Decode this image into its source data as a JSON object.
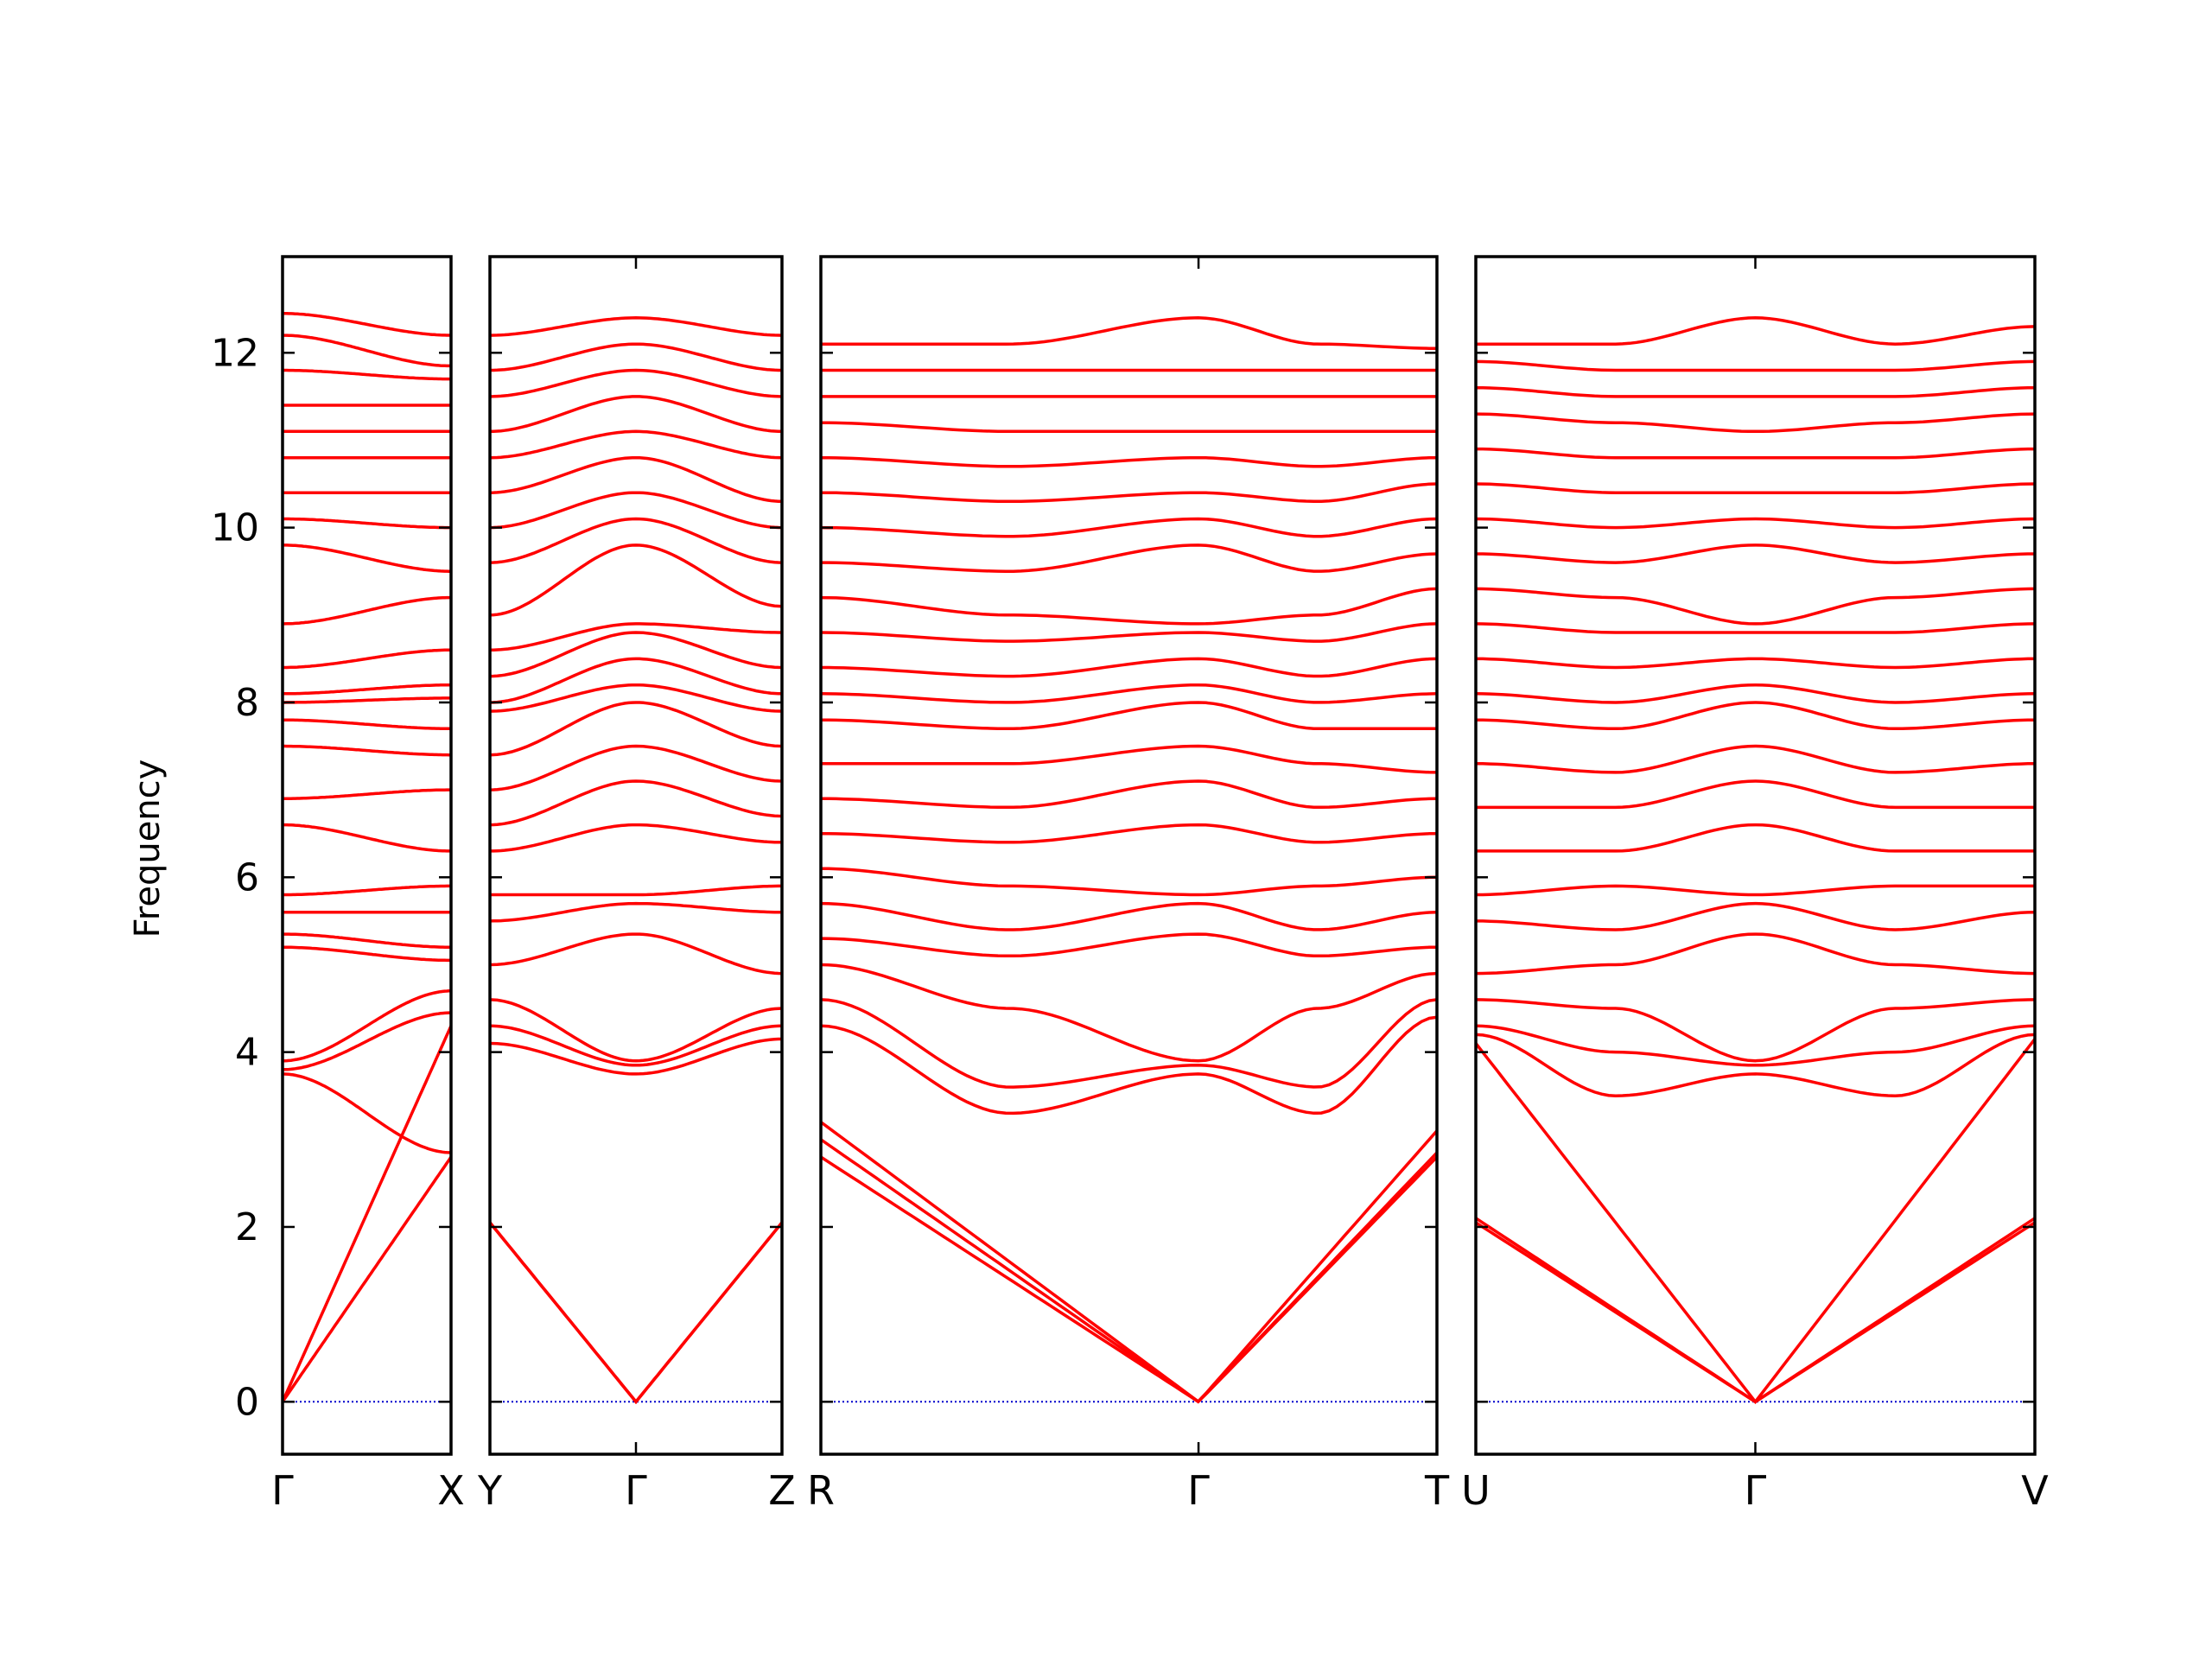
{
  "chart_data": {
    "type": "line",
    "title": "",
    "ylabel": "Frequency",
    "xlabel": "",
    "ylim": [
      -0.6,
      13.1
    ],
    "yticks": [
      0,
      2,
      4,
      6,
      8,
      10,
      12
    ],
    "grid": false,
    "legend": "none",
    "colors": {
      "bands": "#ff0000",
      "zero_line": "#0000cc",
      "axes": "#000000"
    },
    "segments": [
      {
        "name": "",
        "ticks": [
          {
            "label": "Γ",
            "pos": 0
          },
          {
            "label": "X",
            "pos": 1
          }
        ],
        "end_labels": [
          "Γ",
          "X"
        ],
        "bands_start": [
          0,
          0,
          3.75,
          3.8,
          3.9,
          5.2,
          5.35,
          5.6,
          5.8,
          6.6,
          6.9,
          7.5,
          7.8,
          8.0,
          8.1,
          8.4,
          8.9,
          9.8,
          10.1,
          10.4,
          10.8,
          11.1,
          11.4,
          11.8,
          12.2,
          12.45
        ],
        "bands_end": [
          4.3,
          2.8,
          2.85,
          4.45,
          4.7,
          5.05,
          5.2,
          5.6,
          5.9,
          6.3,
          7.0,
          7.4,
          7.7,
          8.05,
          8.2,
          8.6,
          9.2,
          9.5,
          10.0,
          10.4,
          10.8,
          11.1,
          11.4,
          11.7,
          11.85,
          12.2
        ]
      },
      {
        "name": "",
        "ticks": [
          {
            "label": "Y",
            "pos": 0
          },
          {
            "label": "Γ",
            "pos": 0.5
          },
          {
            "label": "Z",
            "pos": 1
          }
        ],
        "end_labels": [
          "Y",
          "Γ",
          "Z"
        ],
        "bands_start": [
          2.05,
          2.05,
          4.1,
          4.3,
          4.6,
          5.0,
          5.5,
          5.8,
          6.3,
          6.6,
          7.0,
          7.4,
          7.9,
          8.0,
          8.3,
          8.6,
          9.0,
          9.6,
          10.0,
          10.4,
          10.8,
          11.1,
          11.5,
          11.8,
          12.2
        ],
        "bands_mid": [
          0,
          0,
          3.75,
          3.85,
          3.9,
          5.35,
          5.7,
          5.8,
          6.6,
          7.1,
          7.5,
          8.0,
          8.2,
          8.5,
          8.8,
          8.9,
          9.8,
          10.1,
          10.4,
          10.8,
          11.1,
          11.5,
          11.8,
          12.1,
          12.4
        ],
        "bands_end": [
          2.05,
          2.05,
          4.15,
          4.3,
          4.5,
          4.9,
          5.6,
          5.9,
          6.4,
          6.7,
          7.1,
          7.5,
          7.9,
          8.1,
          8.4,
          8.8,
          9.1,
          9.6,
          10.0,
          10.3,
          10.8,
          11.1,
          11.5,
          11.8,
          12.2
        ]
      },
      {
        "name": "",
        "ticks": [
          {
            "label": "R",
            "pos": 0
          },
          {
            "label": "Γ",
            "pos": 0.613
          },
          {
            "label": "T",
            "pos": 1
          }
        ],
        "end_labels": [
          "R",
          "Γ",
          "T"
        ],
        "bands_start": [
          2.8,
          3.0,
          3.2,
          4.3,
          4.6,
          5.0,
          5.3,
          5.7,
          6.1,
          6.5,
          6.9,
          7.3,
          7.8,
          8.1,
          8.4,
          8.8,
          9.2,
          9.6,
          10.0,
          10.4,
          10.8,
          11.2,
          11.5,
          11.8,
          12.1
        ],
        "bands_dip": [
          1.9,
          2.65,
          2.8,
          3.3,
          3.6,
          4.5,
          5.1,
          5.4,
          5.9,
          6.4,
          6.8,
          7.3,
          7.7,
          8.0,
          8.3,
          8.7,
          9.0,
          9.5,
          9.9,
          10.3,
          10.7,
          11.1,
          11.5,
          11.8,
          12.1
        ],
        "bands_mid": [
          0,
          0,
          0,
          3.75,
          3.85,
          3.9,
          5.35,
          5.7,
          5.8,
          6.6,
          7.1,
          7.5,
          8.0,
          8.2,
          8.5,
          8.8,
          8.9,
          9.8,
          10.1,
          10.4,
          10.8,
          11.1,
          11.5,
          11.8,
          12.4
        ],
        "bands_end": [
          2.8,
          2.85,
          3.1,
          4.4,
          4.6,
          4.9,
          5.2,
          5.6,
          6.0,
          6.5,
          6.9,
          7.2,
          7.7,
          8.1,
          8.5,
          8.9,
          9.3,
          9.7,
          10.1,
          10.5,
          10.8,
          11.1,
          11.5,
          11.8,
          12.05
        ]
      },
      {
        "name": "",
        "ticks": [
          {
            "label": "U",
            "pos": 0
          },
          {
            "label": "Γ",
            "pos": 0.5
          },
          {
            "label": "V",
            "pos": 1
          }
        ],
        "end_labels": [
          "U",
          "Γ",
          "V"
        ],
        "bands_start": [
          2.05,
          2.1,
          4.1,
          4.2,
          4.3,
          4.6,
          4.9,
          5.5,
          5.8,
          6.3,
          6.8,
          7.3,
          7.8,
          8.1,
          8.5,
          8.9,
          9.3,
          9.7,
          10.1,
          10.5,
          10.9,
          11.3,
          11.6,
          11.9,
          12.1
        ],
        "bands_dip": [
          1.8,
          2.0,
          3.3,
          3.5,
          4.0,
          4.5,
          5.0,
          5.4,
          5.9,
          6.3,
          6.8,
          7.2,
          7.7,
          8.0,
          8.4,
          8.8,
          9.2,
          9.6,
          10.0,
          10.4,
          10.8,
          11.2,
          11.5,
          11.8,
          12.1
        ],
        "bands_mid": [
          0,
          0,
          0,
          3.75,
          3.85,
          3.9,
          5.35,
          5.7,
          5.8,
          6.6,
          7.1,
          7.5,
          8.0,
          8.2,
          8.5,
          8.8,
          8.9,
          9.8,
          10.1,
          10.4,
          10.8,
          11.1,
          11.5,
          11.8,
          12.4
        ],
        "bands_end": [
          2.05,
          2.1,
          4.15,
          4.2,
          4.3,
          4.6,
          4.9,
          5.6,
          5.9,
          6.3,
          6.8,
          7.3,
          7.8,
          8.1,
          8.5,
          8.9,
          9.3,
          9.7,
          10.1,
          10.5,
          10.9,
          11.3,
          11.6,
          11.9,
          12.3
        ]
      }
    ]
  }
}
